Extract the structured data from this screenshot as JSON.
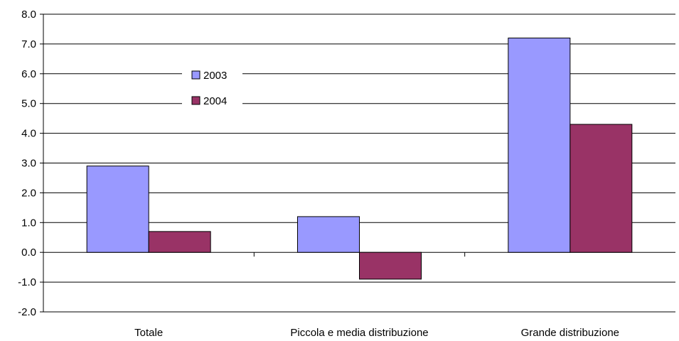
{
  "chart_data": {
    "type": "bar",
    "categories": [
      "Totale",
      "Piccola e media distribuzione",
      "Grande distribuzione"
    ],
    "series": [
      {
        "name": "2003",
        "values": [
          2.9,
          1.2,
          7.2
        ],
        "color": "#9999ff"
      },
      {
        "name": "2004",
        "values": [
          0.7,
          -0.9,
          4.3
        ],
        "color": "#993366"
      }
    ],
    "ylim": [
      -2.0,
      8.0
    ],
    "yticks": [
      "-2.0",
      "-1.0",
      "0.0",
      "1.0",
      "2.0",
      "3.0",
      "4.0",
      "5.0",
      "6.0",
      "7.0",
      "8.0"
    ],
    "grid": true,
    "legend_position": "inside upper-left"
  }
}
